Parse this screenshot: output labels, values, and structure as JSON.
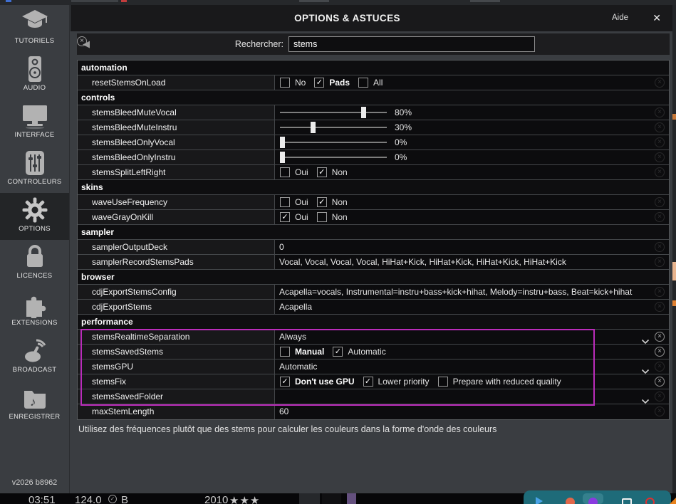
{
  "window": {
    "title": "OPTIONS & ASTUCES",
    "help_label": "Aide",
    "close_glyph": "✕"
  },
  "search": {
    "back_glyph": "◀",
    "label": "Rechercher:",
    "value": "stems",
    "clear_glyph": "×"
  },
  "sidebar": {
    "version": "v2026 b8962",
    "items": [
      {
        "label": "TUTORIELS",
        "icon": "graduation-cap-icon",
        "selected": false
      },
      {
        "label": "AUDIO",
        "icon": "speaker-icon",
        "selected": false
      },
      {
        "label": "INTERFACE",
        "icon": "monitor-icon",
        "selected": false
      },
      {
        "label": "CONTROLEURS",
        "icon": "mixer-icon",
        "selected": false
      },
      {
        "label": "OPTIONS",
        "icon": "gear-icon",
        "selected": true
      },
      {
        "label": "LICENCES",
        "icon": "lock-icon",
        "selected": false
      },
      {
        "label": "EXTENSIONS",
        "icon": "puzzle-icon",
        "selected": false
      },
      {
        "label": "BROADCAST",
        "icon": "broadcast-icon",
        "selected": false
      },
      {
        "label": "ENREGISTRER",
        "icon": "record-folder-icon",
        "selected": false
      }
    ]
  },
  "settings": {
    "sections": [
      {
        "header": "automation",
        "rows": [
          {
            "name": "resetStemsOnLoad",
            "type": "checkboxes",
            "options": [
              {
                "label": "No",
                "checked": false,
                "bold": false
              },
              {
                "label": "Pads",
                "checked": true,
                "bold": true
              },
              {
                "label": "All",
                "checked": false,
                "bold": false
              }
            ]
          }
        ]
      },
      {
        "header": "controls",
        "rows": [
          {
            "name": "stemsBleedMuteVocal",
            "type": "slider",
            "percent": 80,
            "display": "80%"
          },
          {
            "name": "stemsBleedMuteInstru",
            "type": "slider",
            "percent": 30,
            "display": "30%"
          },
          {
            "name": "stemsBleedOnlyVocal",
            "type": "slider",
            "percent": 0,
            "display": "0%"
          },
          {
            "name": "stemsBleedOnlyInstru",
            "type": "slider",
            "percent": 0,
            "display": "0%"
          },
          {
            "name": "stemsSplitLeftRight",
            "type": "checkboxes",
            "options": [
              {
                "label": "Oui",
                "checked": false,
                "bold": false
              },
              {
                "label": "Non",
                "checked": true,
                "bold": false
              }
            ]
          }
        ]
      },
      {
        "header": "skins",
        "rows": [
          {
            "name": "waveUseFrequency",
            "type": "checkboxes",
            "options": [
              {
                "label": "Oui",
                "checked": false,
                "bold": false
              },
              {
                "label": "Non",
                "checked": true,
                "bold": false
              }
            ]
          },
          {
            "name": "waveGrayOnKill",
            "type": "checkboxes",
            "options": [
              {
                "label": "Oui",
                "checked": true,
                "bold": false
              },
              {
                "label": "Non",
                "checked": false,
                "bold": false
              }
            ]
          }
        ]
      },
      {
        "header": "sampler",
        "rows": [
          {
            "name": "samplerOutputDeck",
            "type": "text",
            "value": "0"
          },
          {
            "name": "samplerRecordStemsPads",
            "type": "text",
            "value": "Vocal, Vocal, Vocal, Vocal, HiHat+Kick, HiHat+Kick, HiHat+Kick, HiHat+Kick"
          }
        ]
      },
      {
        "header": "browser",
        "rows": [
          {
            "name": "cdjExportStemsConfig",
            "type": "text",
            "value": "Acapella=vocals, Instrumental=instru+bass+kick+hihat, Melody=instru+bass, Beat=kick+hihat"
          },
          {
            "name": "cdjExportStems",
            "type": "text",
            "value": "Acapella"
          }
        ]
      },
      {
        "header": "performance",
        "rows": [
          {
            "name": "stemsRealtimeSeparation",
            "type": "dropdown",
            "value": "Always",
            "chevron": true,
            "clear": true,
            "highlight": true
          },
          {
            "name": "stemsSavedStems",
            "type": "checkboxes",
            "clear": true,
            "highlight": true,
            "options": [
              {
                "label": "Manual",
                "checked": false,
                "bold": true
              },
              {
                "label": "Automatic",
                "checked": true,
                "bold": false
              }
            ]
          },
          {
            "name": "stemsGPU",
            "type": "dropdown",
            "value": "Automatic",
            "chevron": true,
            "clear": false,
            "highlight": true
          },
          {
            "name": "stemsFix",
            "type": "checkboxes",
            "clear": true,
            "highlight": true,
            "options": [
              {
                "label": "Don't use GPU",
                "checked": true,
                "bold": true
              },
              {
                "label": "Lower priority",
                "checked": true,
                "bold": false
              },
              {
                "label": "Prepare with reduced quality",
                "checked": false,
                "bold": false
              }
            ]
          },
          {
            "name": "stemsSavedFolder",
            "type": "dropdown",
            "value": "",
            "chevron": true,
            "clear": false,
            "highlight": true
          },
          {
            "name": "maxStemLength",
            "type": "text",
            "value": "60"
          }
        ]
      }
    ]
  },
  "description": "Utilisez des fréquences plutôt que des stems pour calculer les couleurs dans la forme d'onde des couleurs",
  "footer": {
    "time": "03:51",
    "bpm": "124.0",
    "key": "B",
    "year": "2010",
    "stars": "★★★"
  },
  "taskbar": {
    "icons": [
      "play-icon",
      "orange-app-icon",
      "purple-app-icon",
      "square-app-icon",
      "red-app-icon"
    ]
  },
  "colors": {
    "highlight": "#ba2cba",
    "stars": "#e8831d",
    "taskbar": "#1e6b79"
  }
}
